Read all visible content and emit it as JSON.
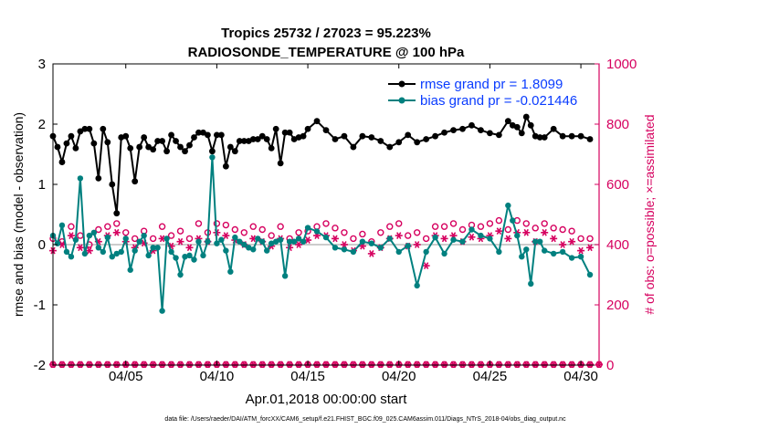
{
  "chart_data": {
    "type": "line",
    "title_line1": "Tropics 25732 / 27023 = 95.223%",
    "title_line2": "RADIOSONDE_TEMPERATURE @ 100 hPa",
    "xlabel": "Apr.01,2018 00:00:00 start",
    "ylabel_left": "rmse and bias (model - observation)",
    "ylabel_right": "# of obs: o=possible; ×=assimilated",
    "footer": "data file: /Users/raeder/DAI/ATM_forcXX/CAM6_setup/f.e21.FHIST_BGC.f09_025.CAM6assim.011/Diags_NTrS_2018-04/obs_diag_output.nc",
    "xlim": [
      1,
      31
    ],
    "ylim_left": [
      -2,
      3
    ],
    "ylim_right": [
      0,
      1000
    ],
    "x_ticks": [
      5,
      10,
      15,
      20,
      25,
      30
    ],
    "x_tick_labels": [
      "04/05",
      "04/10",
      "04/15",
      "04/20",
      "04/25",
      "04/30"
    ],
    "y_left_ticks": [
      -2,
      -1,
      0,
      1,
      2,
      3
    ],
    "y_right_ticks": [
      0,
      200,
      400,
      600,
      800,
      1000
    ],
    "colors": {
      "rmse": "#000000",
      "bias": "#00807f",
      "obs": "#d6005f",
      "zero_line": "#bbbbbb",
      "legend_text": "#0a3cff"
    },
    "series": [
      {
        "name": "rmse grand pr = 1.8099",
        "marker": "star",
        "x": [
          1.0,
          1.25,
          1.5,
          1.75,
          2.0,
          2.25,
          2.5,
          2.75,
          3.0,
          3.25,
          3.5,
          3.75,
          4.0,
          4.25,
          4.5,
          4.75,
          5.0,
          5.25,
          5.5,
          5.75,
          6.0,
          6.25,
          6.5,
          6.75,
          7.0,
          7.25,
          7.5,
          7.75,
          8.0,
          8.25,
          8.5,
          8.75,
          9.0,
          9.25,
          9.5,
          9.75,
          10.0,
          10.25,
          10.5,
          10.75,
          11.0,
          11.25,
          11.5,
          11.75,
          12.0,
          12.25,
          12.5,
          12.75,
          13.0,
          13.25,
          13.5,
          13.75,
          14.0,
          14.25,
          14.5,
          14.75,
          15.0,
          15.5,
          16.0,
          16.5,
          17.0,
          17.5,
          18.0,
          18.5,
          19.0,
          19.5,
          20.0,
          20.5,
          21.0,
          21.5,
          22.0,
          22.5,
          23.0,
          23.5,
          24.0,
          24.5,
          25.0,
          25.5,
          26.0,
          26.25,
          26.5,
          26.75,
          27.0,
          27.25,
          27.5,
          27.75,
          28.0,
          28.5,
          29.0,
          29.5,
          30.0,
          30.5
        ],
        "values": [
          1.8,
          1.62,
          1.37,
          1.68,
          1.8,
          1.6,
          1.88,
          1.92,
          1.92,
          1.68,
          1.1,
          1.92,
          1.7,
          1.0,
          0.52,
          1.78,
          1.8,
          1.6,
          1.05,
          1.62,
          1.78,
          1.62,
          1.58,
          1.72,
          1.72,
          1.55,
          1.82,
          1.72,
          1.62,
          1.55,
          1.65,
          1.78,
          1.86,
          1.86,
          1.82,
          1.55,
          1.82,
          1.82,
          1.3,
          1.62,
          1.55,
          1.72,
          1.72,
          1.72,
          1.75,
          1.75,
          1.8,
          1.75,
          1.6,
          1.92,
          1.35,
          1.86,
          1.86,
          1.75,
          1.78,
          1.8,
          1.92,
          2.05,
          1.9,
          1.75,
          1.8,
          1.62,
          1.8,
          1.78,
          1.72,
          1.62,
          1.7,
          1.82,
          1.7,
          1.75,
          1.8,
          1.86,
          1.9,
          1.92,
          1.98,
          1.9,
          1.85,
          1.82,
          2.05,
          1.98,
          1.95,
          1.85,
          2.12,
          1.98,
          1.8,
          1.78,
          1.78,
          1.92,
          1.8,
          1.8,
          1.8,
          1.75
        ]
      },
      {
        "name": "bias grand pr = -0.021446",
        "marker": "circle",
        "x": [
          1.0,
          1.25,
          1.5,
          1.75,
          2.0,
          2.25,
          2.5,
          2.75,
          3.0,
          3.25,
          3.5,
          3.75,
          4.0,
          4.25,
          4.5,
          4.75,
          5.0,
          5.25,
          5.5,
          5.75,
          6.0,
          6.25,
          6.5,
          6.75,
          7.0,
          7.25,
          7.5,
          7.75,
          8.0,
          8.25,
          8.5,
          8.75,
          9.0,
          9.25,
          9.5,
          9.75,
          10.0,
          10.25,
          10.5,
          10.75,
          11.0,
          11.25,
          11.5,
          11.75,
          12.0,
          12.25,
          12.5,
          12.75,
          13.0,
          13.25,
          13.5,
          13.75,
          14.0,
          14.25,
          14.5,
          14.75,
          15.0,
          15.5,
          16.0,
          16.5,
          17.0,
          17.5,
          18.0,
          18.5,
          19.0,
          19.5,
          20.0,
          20.5,
          21.0,
          21.5,
          22.0,
          22.5,
          23.0,
          23.5,
          24.0,
          24.5,
          25.0,
          25.5,
          26.0,
          26.25,
          26.5,
          26.75,
          27.0,
          27.25,
          27.5,
          27.75,
          28.0,
          28.5,
          29.0,
          29.5,
          30.0,
          30.5
        ],
        "values": [
          0.15,
          0.02,
          0.32,
          -0.12,
          -0.2,
          0.08,
          1.1,
          -0.15,
          0.15,
          0.2,
          -0.05,
          -0.12,
          0.12,
          -0.2,
          -0.15,
          -0.12,
          0.1,
          -0.42,
          -0.1,
          0.05,
          0.15,
          -0.18,
          -0.05,
          -0.05,
          -1.1,
          0.1,
          -0.12,
          -0.22,
          -0.5,
          -0.2,
          -0.18,
          -0.25,
          0.05,
          -0.18,
          0.05,
          1.45,
          0.02,
          0.08,
          -0.1,
          -0.45,
          0.12,
          0.05,
          0.0,
          -0.05,
          -0.08,
          0.1,
          0.05,
          -0.1,
          0.02,
          0.05,
          0.08,
          -0.52,
          0.05,
          0.05,
          0.1,
          0.05,
          0.28,
          0.22,
          0.12,
          -0.05,
          -0.08,
          -0.12,
          0.05,
          0.02,
          -0.05,
          0.1,
          -0.12,
          -0.02,
          -0.68,
          -0.12,
          0.12,
          -0.15,
          0.08,
          0.05,
          0.25,
          0.15,
          0.1,
          -0.12,
          0.65,
          0.4,
          0.15,
          -0.2,
          -0.08,
          -0.65,
          0.05,
          0.05,
          -0.1,
          -0.15,
          -0.12,
          -0.22,
          -0.2,
          -0.5
        ]
      },
      {
        "name": "obs possible",
        "marker": "o",
        "x": [
          1.0,
          1.5,
          2.0,
          2.5,
          3.0,
          3.5,
          4.0,
          4.5,
          5.0,
          5.5,
          6.0,
          6.5,
          7.0,
          7.5,
          8.0,
          8.5,
          9.0,
          9.5,
          10.0,
          10.5,
          11.0,
          11.5,
          12.0,
          12.5,
          13.0,
          13.5,
          14.0,
          14.5,
          15.0,
          15.5,
          16.0,
          16.5,
          17.0,
          17.5,
          18.0,
          18.5,
          19.0,
          19.5,
          20.0,
          20.5,
          21.0,
          21.5,
          22.0,
          22.5,
          23.0,
          23.5,
          24.0,
          24.5,
          25.0,
          25.5,
          26.0,
          26.5,
          27.0,
          27.5,
          28.0,
          28.5,
          29.0,
          29.5,
          30.0,
          30.5
        ],
        "values": [
          420,
          410,
          460,
          430,
          400,
          450,
          460,
          470,
          440,
          420,
          445,
          420,
          460,
          430,
          445,
          420,
          470,
          440,
          470,
          465,
          450,
          440,
          460,
          450,
          430,
          460,
          420,
          440,
          445,
          460,
          470,
          455,
          440,
          420,
          435,
          410,
          440,
          460,
          470,
          430,
          440,
          420,
          460,
          460,
          470,
          450,
          465,
          460,
          470,
          480,
          450,
          480,
          470,
          455,
          470,
          455,
          450,
          445,
          420,
          420
        ]
      },
      {
        "name": "obs assimilated",
        "marker": "x",
        "x": [
          1.0,
          1.5,
          2.0,
          2.5,
          3.0,
          3.5,
          4.0,
          4.5,
          5.0,
          5.5,
          6.0,
          6.5,
          7.0,
          7.5,
          8.0,
          8.5,
          9.0,
          9.5,
          10.0,
          10.5,
          11.0,
          11.5,
          12.0,
          12.5,
          13.0,
          13.5,
          14.0,
          14.5,
          15.0,
          15.5,
          16.0,
          16.5,
          17.0,
          17.5,
          18.0,
          18.5,
          19.0,
          19.5,
          20.0,
          20.5,
          21.0,
          21.5,
          22.0,
          22.5,
          23.0,
          23.5,
          24.0,
          24.5,
          25.0,
          25.5,
          26.0,
          26.5,
          27.0,
          27.5,
          28.0,
          28.5,
          29.0,
          29.5,
          30.0,
          30.5
        ],
        "values": [
          380,
          400,
          430,
          390,
          380,
          410,
          430,
          440,
          410,
          390,
          405,
          380,
          420,
          395,
          410,
          390,
          420,
          410,
          440,
          430,
          415,
          400,
          420,
          410,
          395,
          420,
          390,
          400,
          415,
          430,
          430,
          420,
          400,
          380,
          395,
          370,
          390,
          420,
          430,
          395,
          400,
          330,
          430,
          420,
          430,
          410,
          425,
          420,
          430,
          445,
          420,
          440,
          440,
          410,
          440,
          420,
          400,
          410,
          380,
          390
        ]
      },
      {
        "name": "obs baseline possible",
        "marker": "o",
        "x": [
          1.0,
          1.5,
          2.0,
          2.5,
          3.0,
          3.5,
          4.0,
          4.5,
          5.0,
          5.5,
          6.0,
          6.5,
          7.0,
          7.5,
          8.0,
          8.5,
          9.0,
          9.5,
          10.0,
          10.5,
          11.0,
          11.5,
          12.0,
          12.5,
          13.0,
          13.5,
          14.0,
          14.5,
          15.0,
          15.5,
          16.0,
          16.5,
          17.0,
          17.5,
          18.0,
          18.5,
          19.0,
          19.5,
          20.0,
          20.5,
          21.0,
          21.5,
          22.0,
          22.5,
          23.0,
          23.5,
          24.0,
          24.5,
          25.0,
          25.5,
          26.0,
          26.5,
          27.0,
          27.5,
          28.0,
          28.5,
          29.0,
          29.5,
          30.0,
          30.5,
          31.0
        ],
        "values": [
          2,
          2,
          2,
          2,
          2,
          2,
          2,
          2,
          2,
          2,
          2,
          2,
          2,
          2,
          2,
          2,
          2,
          2,
          2,
          2,
          2,
          2,
          2,
          2,
          2,
          2,
          2,
          2,
          2,
          2,
          2,
          2,
          2,
          2,
          2,
          2,
          2,
          2,
          2,
          2,
          2,
          2,
          2,
          2,
          2,
          2,
          2,
          2,
          2,
          2,
          2,
          2,
          2,
          2,
          2,
          2,
          2,
          2,
          2,
          2,
          2
        ]
      }
    ]
  }
}
